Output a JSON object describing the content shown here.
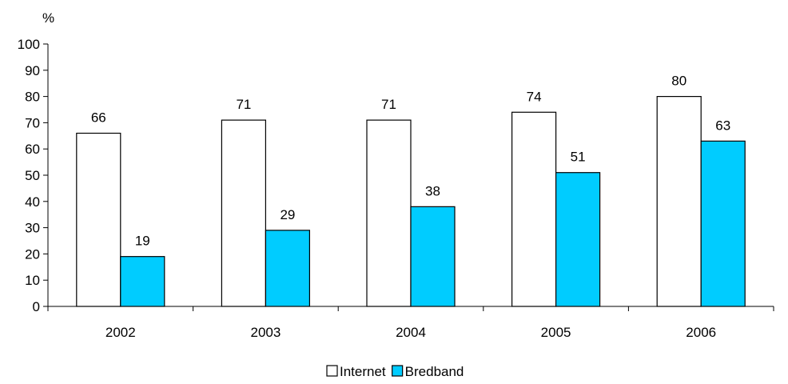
{
  "chart_data": {
    "type": "bar",
    "title": "",
    "xlabel": "",
    "ylabel": "%",
    "ylim": [
      0,
      100
    ],
    "yticks": [
      0,
      10,
      20,
      30,
      40,
      50,
      60,
      70,
      80,
      90,
      100
    ],
    "categories": [
      "2002",
      "2003",
      "2004",
      "2005",
      "2006"
    ],
    "series": [
      {
        "name": "Internet",
        "values": [
          66,
          71,
          71,
          74,
          80
        ],
        "color": "#ffffff",
        "stroke": "#000000"
      },
      {
        "name": "Bredband",
        "values": [
          19,
          29,
          38,
          51,
          63
        ],
        "color": "#00ccff",
        "stroke": "#000000"
      }
    ],
    "data_labels": true,
    "grid": false,
    "legend_position": "bottom"
  }
}
